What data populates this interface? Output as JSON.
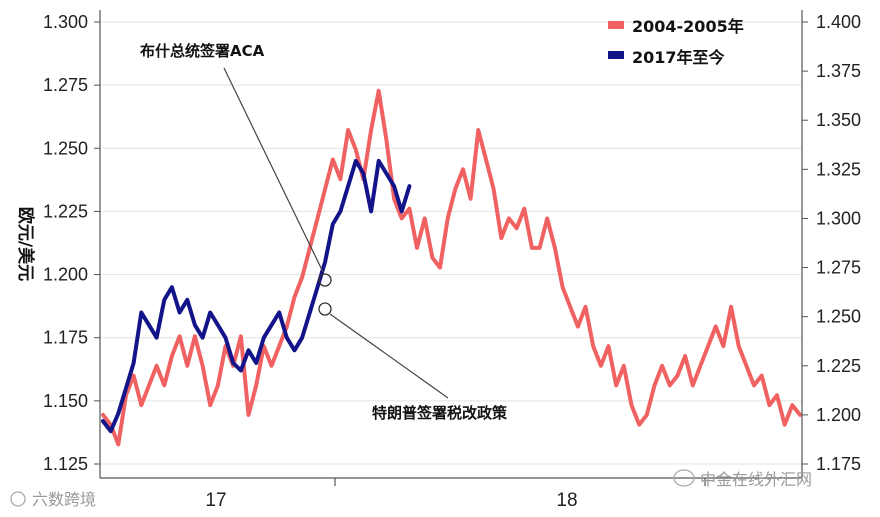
{
  "chart_data": {
    "type": "line",
    "title": "",
    "ylabel": "欧元/美元",
    "xlabel": "",
    "x_ticks": [
      "17",
      "18"
    ],
    "ylim_left": [
      1.125,
      1.3
    ],
    "ylim_right": [
      1.175,
      1.4
    ],
    "y_ticks_left": [
      "1.300",
      "1.275",
      "1.250",
      "1.225",
      "1.200",
      "1.175",
      "1.150",
      "1.125"
    ],
    "y_ticks_right": [
      "1.400",
      "1.375",
      "1.350",
      "1.325",
      "1.300",
      "1.275",
      "1.250",
      "1.225",
      "1.200",
      "1.175"
    ],
    "grid": true,
    "legend_position": "top-right",
    "series": [
      {
        "name": "2004-2005年",
        "axis": "right",
        "color": "#f06262",
        "x": [
          0.0,
          0.02,
          0.04,
          0.06,
          0.08,
          0.1,
          0.12,
          0.14,
          0.16,
          0.18,
          0.2,
          0.22,
          0.24,
          0.26,
          0.28,
          0.3,
          0.32,
          0.34,
          0.36,
          0.38,
          0.4,
          0.42,
          0.44,
          0.46,
          0.48,
          0.5,
          0.52,
          0.54,
          0.56,
          0.58,
          0.6,
          0.62,
          0.64,
          0.66,
          0.68,
          0.7,
          0.72,
          0.74,
          0.76,
          0.78,
          0.8,
          0.82,
          0.84,
          0.86,
          0.88,
          0.9,
          0.92,
          0.94,
          0.96,
          0.98,
          1.0,
          1.02,
          1.04,
          1.06,
          1.08,
          1.1,
          1.12,
          1.14,
          1.16,
          1.18,
          1.2,
          1.22,
          1.24,
          1.26,
          1.28,
          1.3,
          1.32,
          1.34,
          1.36,
          1.38,
          1.4,
          1.42,
          1.44,
          1.46,
          1.48,
          1.5,
          1.52,
          1.54,
          1.56,
          1.58,
          1.6,
          1.62,
          1.64,
          1.66,
          1.68,
          1.7,
          1.72,
          1.74,
          1.76,
          1.78,
          1.8,
          1.82
        ],
        "values": [
          1.2,
          1.195,
          1.185,
          1.21,
          1.22,
          1.205,
          1.215,
          1.225,
          1.215,
          1.23,
          1.24,
          1.225,
          1.24,
          1.225,
          1.205,
          1.215,
          1.235,
          1.225,
          1.24,
          1.2,
          1.215,
          1.235,
          1.225,
          1.235,
          1.245,
          1.26,
          1.27,
          1.285,
          1.3,
          1.315,
          1.33,
          1.32,
          1.345,
          1.335,
          1.32,
          1.345,
          1.365,
          1.34,
          1.31,
          1.3,
          1.305,
          1.285,
          1.3,
          1.28,
          1.275,
          1.3,
          1.315,
          1.325,
          1.31,
          1.345,
          1.33,
          1.315,
          1.29,
          1.3,
          1.295,
          1.305,
          1.285,
          1.285,
          1.3,
          1.285,
          1.265,
          1.255,
          1.245,
          1.255,
          1.235,
          1.225,
          1.235,
          1.215,
          1.225,
          1.205,
          1.195,
          1.2,
          1.215,
          1.225,
          1.215,
          1.22,
          1.23,
          1.215,
          1.225,
          1.235,
          1.245,
          1.235,
          1.255,
          1.235,
          1.225,
          1.215,
          1.22,
          1.205,
          1.21,
          1.195,
          1.205,
          1.2
        ]
      },
      {
        "name": "2017年至今",
        "axis": "left",
        "color": "#13138a",
        "x": [
          0.0,
          0.02,
          0.04,
          0.06,
          0.08,
          0.1,
          0.12,
          0.14,
          0.16,
          0.18,
          0.2,
          0.22,
          0.24,
          0.26,
          0.28,
          0.3,
          0.32,
          0.34,
          0.36,
          0.38,
          0.4,
          0.42,
          0.44,
          0.46,
          0.48,
          0.5,
          0.52,
          0.54,
          0.56,
          0.58,
          0.6,
          0.62,
          0.64,
          0.66,
          0.68,
          0.7,
          0.72,
          0.74,
          0.76,
          0.78,
          0.8
        ],
        "values": [
          1.142,
          1.138,
          1.145,
          1.155,
          1.165,
          1.185,
          1.18,
          1.175,
          1.19,
          1.195,
          1.185,
          1.19,
          1.18,
          1.175,
          1.185,
          1.18,
          1.175,
          1.165,
          1.162,
          1.17,
          1.165,
          1.175,
          1.18,
          1.185,
          1.175,
          1.17,
          1.175,
          1.185,
          1.195,
          1.205,
          1.22,
          1.225,
          1.235,
          1.245,
          1.24,
          1.225,
          1.245,
          1.24,
          1.235,
          1.225,
          1.235
        ]
      }
    ],
    "annotations": [
      {
        "text": "布什总统签署ACA"
      },
      {
        "text": "特朗普签署税改政策"
      }
    ]
  },
  "watermarks": {
    "left": "六数跨境",
    "right": "中金在线外汇网"
  }
}
